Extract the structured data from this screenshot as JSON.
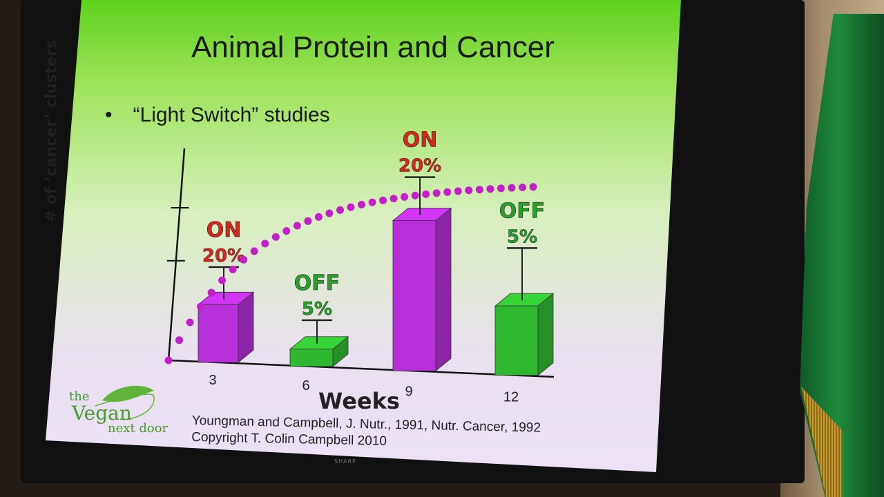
{
  "slide": {
    "title": "Animal Protein and Cancer",
    "bullet": "“Light Switch” studies",
    "citation_line1": "Youngman and Campbell, J. Nutr., 1991, Nutr. Cancer, 1992",
    "citation_line2": "Copyright T. Colin Campbell 2010",
    "logo": {
      "the": "the",
      "vegan": "Vegan",
      "next_door": "next door"
    },
    "tv_brand": "SHARP"
  },
  "chart_data": {
    "type": "bar",
    "title": "",
    "xlabel": "Weeks",
    "ylabel": "# of ‘cancer’ clusters",
    "categories": [
      "3",
      "6",
      "9",
      "12"
    ],
    "values": [
      20,
      6,
      52,
      24
    ],
    "error_tops": [
      33,
      16,
      67,
      44
    ],
    "ylim": [
      0,
      70
    ],
    "bar_colors": [
      "#b62fd8",
      "#2fb82f",
      "#b62fd8",
      "#2fb82f"
    ],
    "labels": [
      {
        "state": "ON",
        "percent": "20%",
        "color": "#d8281c"
      },
      {
        "state": "OFF",
        "percent": "5%",
        "color": "#2aa02a"
      },
      {
        "state": "ON",
        "percent": "20%",
        "color": "#d8281c"
      },
      {
        "state": "OFF",
        "percent": "5%",
        "color": "#2aa02a"
      }
    ],
    "trend_color": "#c21fc9",
    "grid": false
  }
}
